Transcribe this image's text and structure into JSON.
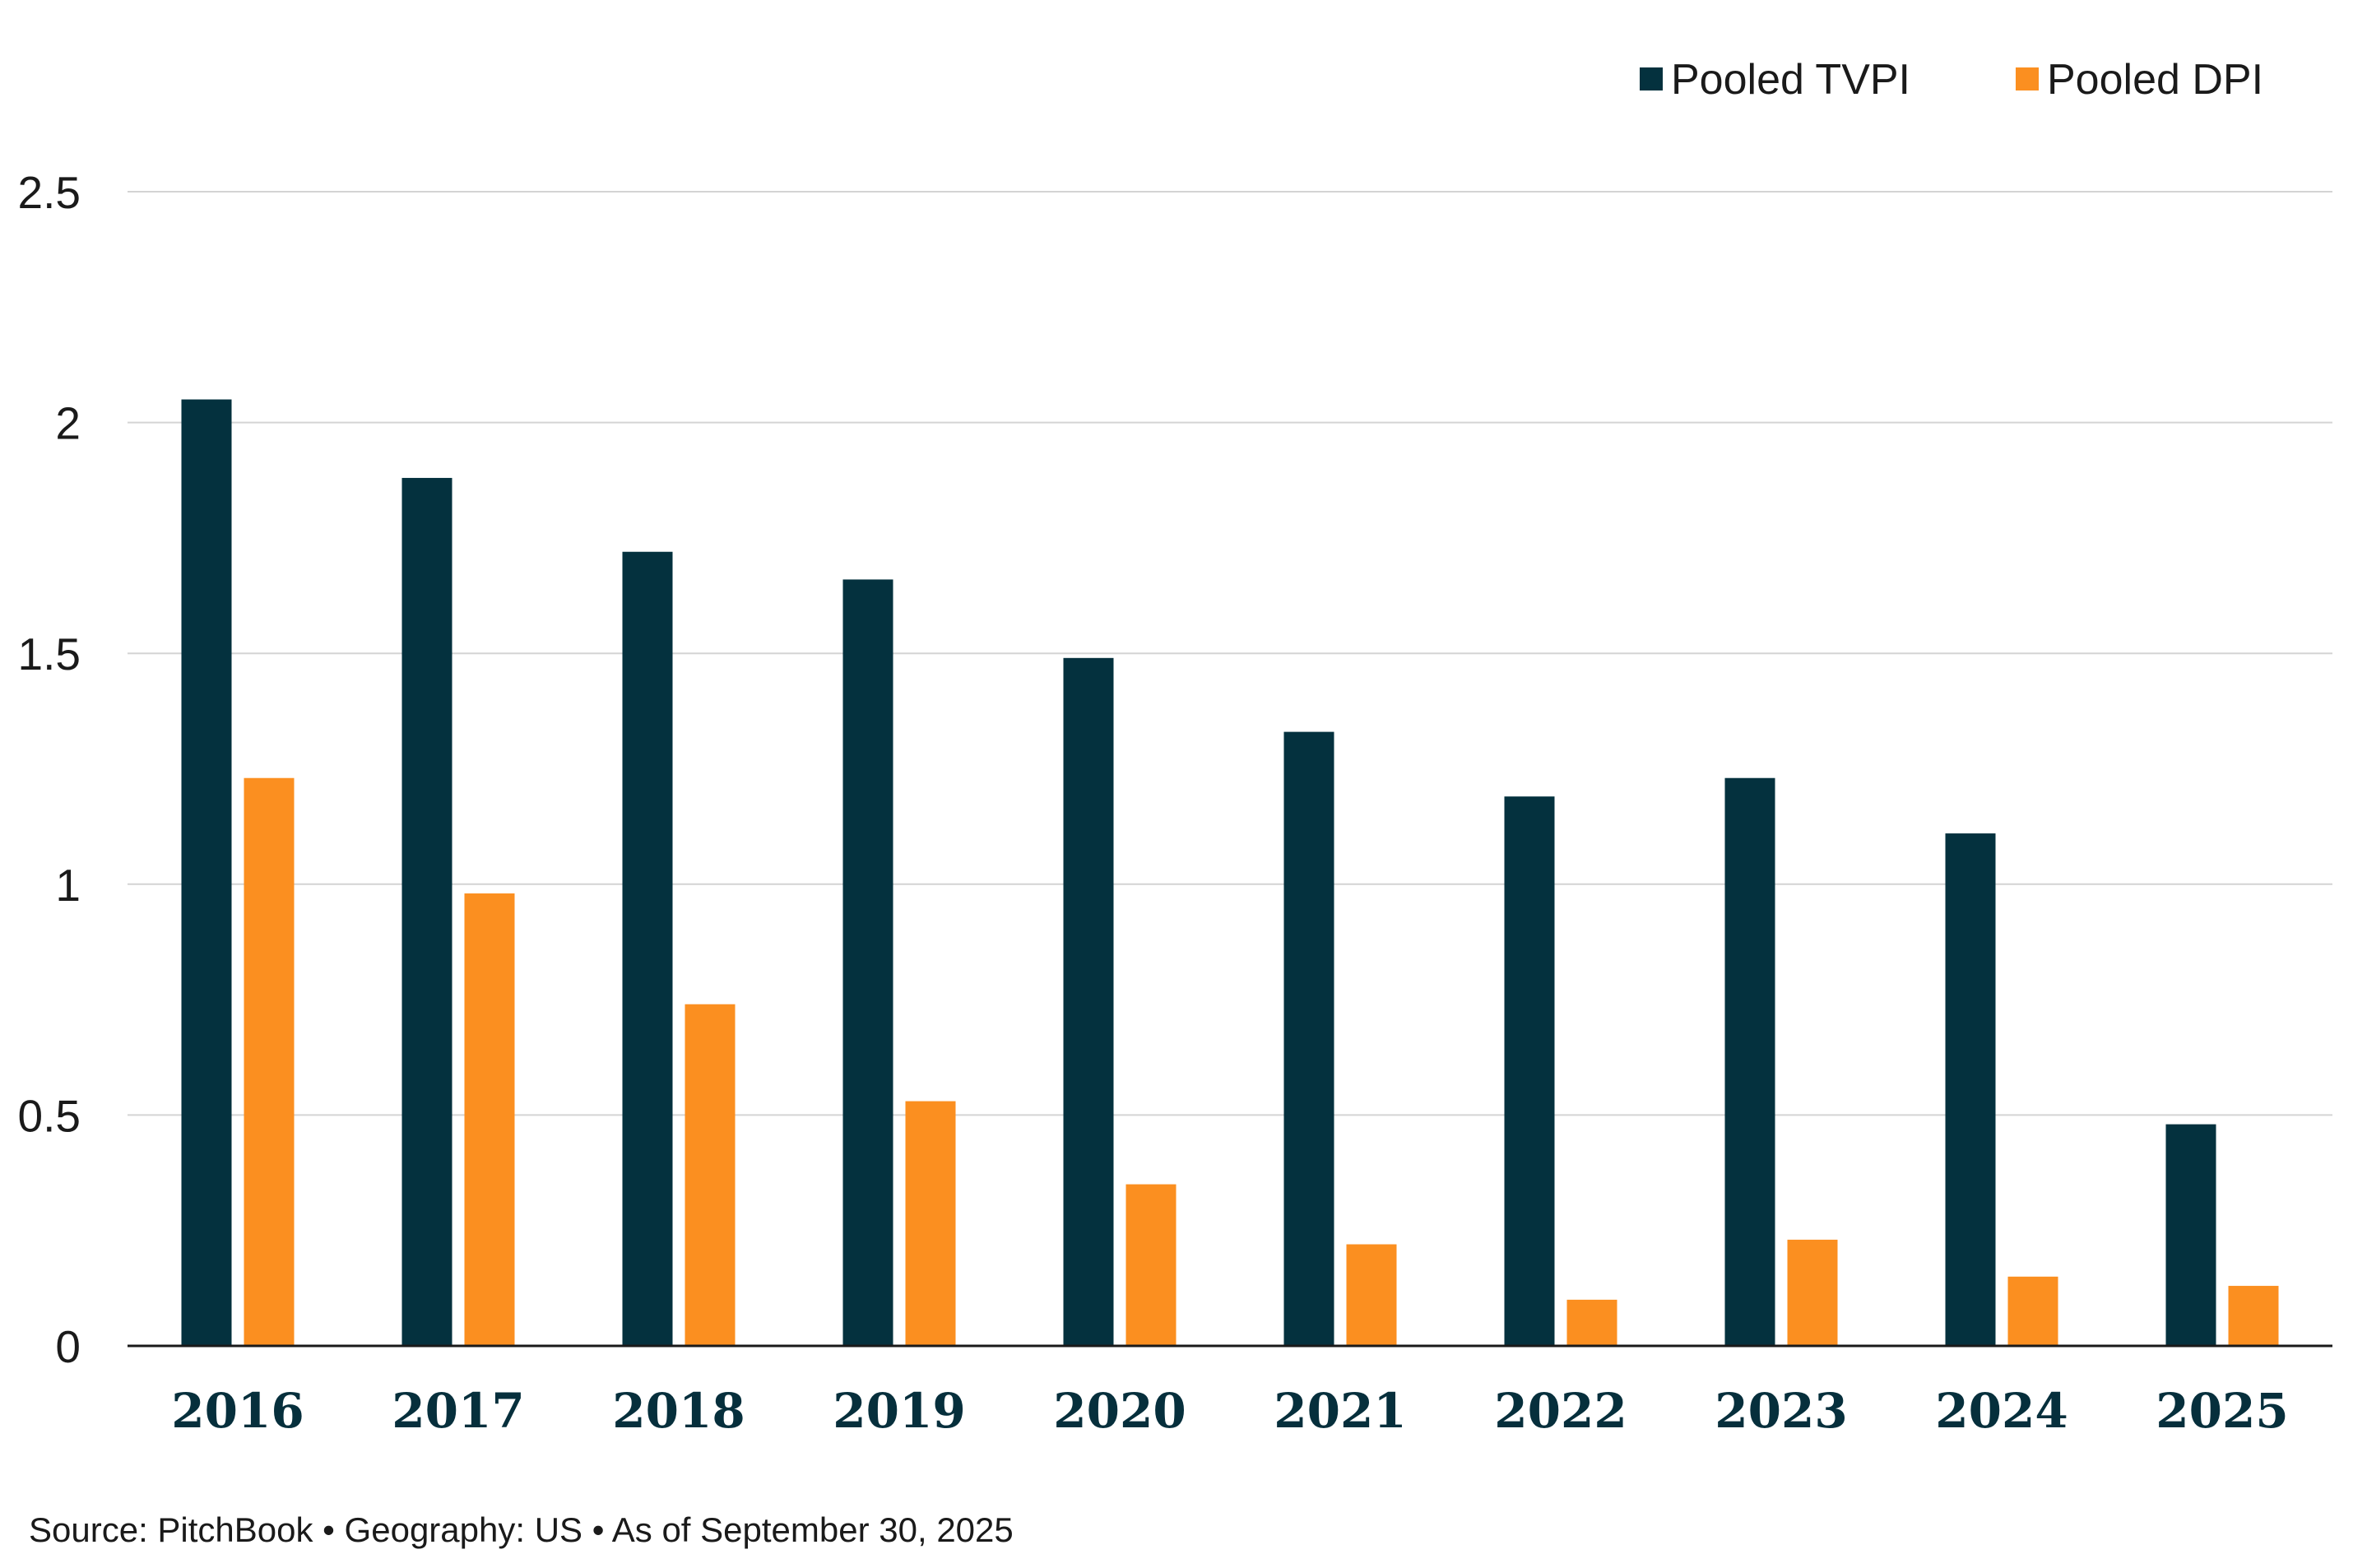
{
  "chart_data": {
    "type": "bar",
    "categories": [
      "2016",
      "2017",
      "2018",
      "2019",
      "2020",
      "2021",
      "2022",
      "2023",
      "2024",
      "2025"
    ],
    "series": [
      {
        "name": "Pooled TVPI",
        "color": "#04313e",
        "values": [
          2.05,
          1.88,
          1.72,
          1.66,
          1.49,
          1.33,
          1.19,
          1.23,
          1.11,
          0.48
        ]
      },
      {
        "name": "Pooled DPI",
        "color": "#fb8f20",
        "values": [
          1.23,
          0.98,
          0.74,
          0.53,
          0.35,
          0.22,
          0.1,
          0.23,
          0.15,
          0.13
        ]
      }
    ],
    "ylim": [
      0,
      2.5
    ],
    "yticks": [
      "0",
      "0.5",
      "1",
      "1.5",
      "2",
      "2.5"
    ],
    "title": "",
    "xlabel": "",
    "ylabel": "",
    "grid": true,
    "legend": "top-right"
  },
  "source_note": "Source: PitchBook • Geography: US • As of September 30, 2025"
}
